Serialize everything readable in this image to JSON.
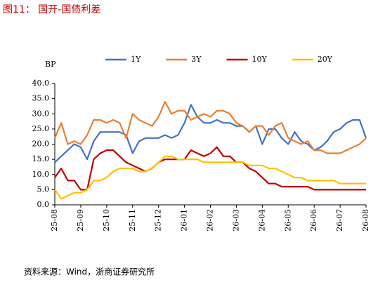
{
  "title": "图11： 国开-国债利差",
  "source": "资料来源：Wind，浙商证券研究所",
  "chart_data": {
    "type": "line",
    "y_label": "BP",
    "legend": "top",
    "grid": false,
    "categories": [
      "25-08",
      null,
      null,
      null,
      "25-09",
      null,
      null,
      null,
      "25-10",
      null,
      null,
      null,
      "25-11",
      null,
      null,
      null,
      "25-12",
      null,
      null,
      null,
      "26-01",
      null,
      null,
      null,
      "26-02",
      null,
      null,
      null,
      "26-03",
      null,
      null,
      null,
      "26-04",
      null,
      null,
      null,
      "26-05",
      null,
      null,
      null,
      "26-06",
      null,
      null,
      null,
      "26-07",
      null,
      null,
      null,
      "26-08"
    ],
    "series": [
      {
        "name": "1Y",
        "color": "#4472c4",
        "values": [
          14,
          16,
          18,
          20,
          19,
          15,
          21,
          24,
          24,
          24,
          24,
          23,
          17,
          21,
          22,
          22,
          22,
          23,
          22,
          23,
          27,
          33,
          29,
          27,
          27,
          28,
          27,
          27,
          26,
          26,
          24,
          26,
          20,
          25,
          25,
          22,
          20,
          24,
          21,
          20,
          18,
          19,
          21,
          24,
          25,
          27,
          28,
          28,
          22
        ]
      },
      {
        "name": "3Y",
        "color": "#ed7d31",
        "values": [
          22,
          27,
          20,
          21,
          20,
          23,
          28,
          28,
          27,
          28,
          27,
          22,
          30,
          28,
          27,
          26,
          29,
          34,
          30,
          31,
          31,
          28,
          29,
          30,
          29,
          31,
          31,
          30,
          27,
          26,
          24,
          26,
          26,
          23,
          26,
          27,
          22,
          21,
          20,
          21,
          18,
          18,
          17,
          17,
          17,
          18,
          19,
          20,
          22
        ]
      },
      {
        "name": "10Y",
        "color": "#c00000",
        "values": [
          9,
          12,
          8,
          8,
          5,
          5,
          15,
          17,
          18,
          18,
          16,
          14,
          13,
          12,
          11,
          12,
          14,
          15,
          15,
          15,
          15,
          18,
          17,
          16,
          17,
          19,
          16,
          16,
          14,
          14,
          12,
          11,
          9,
          7,
          7,
          6,
          6,
          6,
          6,
          6,
          5,
          5,
          5,
          5,
          5,
          5,
          5,
          5,
          5
        ]
      },
      {
        "name": "20Y",
        "color": "#ffc000",
        "values": [
          5,
          2,
          3,
          4,
          4,
          5,
          8,
          8,
          9,
          11,
          12,
          12,
          12,
          11,
          11,
          12,
          14,
          16,
          16,
          15,
          15,
          15,
          15,
          14,
          14,
          14,
          14,
          14,
          14,
          14,
          13,
          13,
          13,
          12,
          12,
          11,
          10,
          9,
          9,
          8,
          8,
          8,
          8,
          8,
          7,
          7,
          7,
          7,
          7
        ]
      }
    ],
    "ylim": [
      0,
      40
    ],
    "yticks": [
      {
        "value": 0,
        "label": "0.0"
      },
      {
        "value": 5,
        "label": "5.0"
      },
      {
        "value": 10,
        "label": "10.0"
      },
      {
        "value": 15,
        "label": "15.0"
      },
      {
        "value": 20,
        "label": "20.0"
      },
      {
        "value": 25,
        "label": "25.0"
      },
      {
        "value": 30,
        "label": "30.0"
      },
      {
        "value": 35,
        "label": "35.0"
      },
      {
        "value": 40,
        "label": "40.0"
      }
    ]
  }
}
